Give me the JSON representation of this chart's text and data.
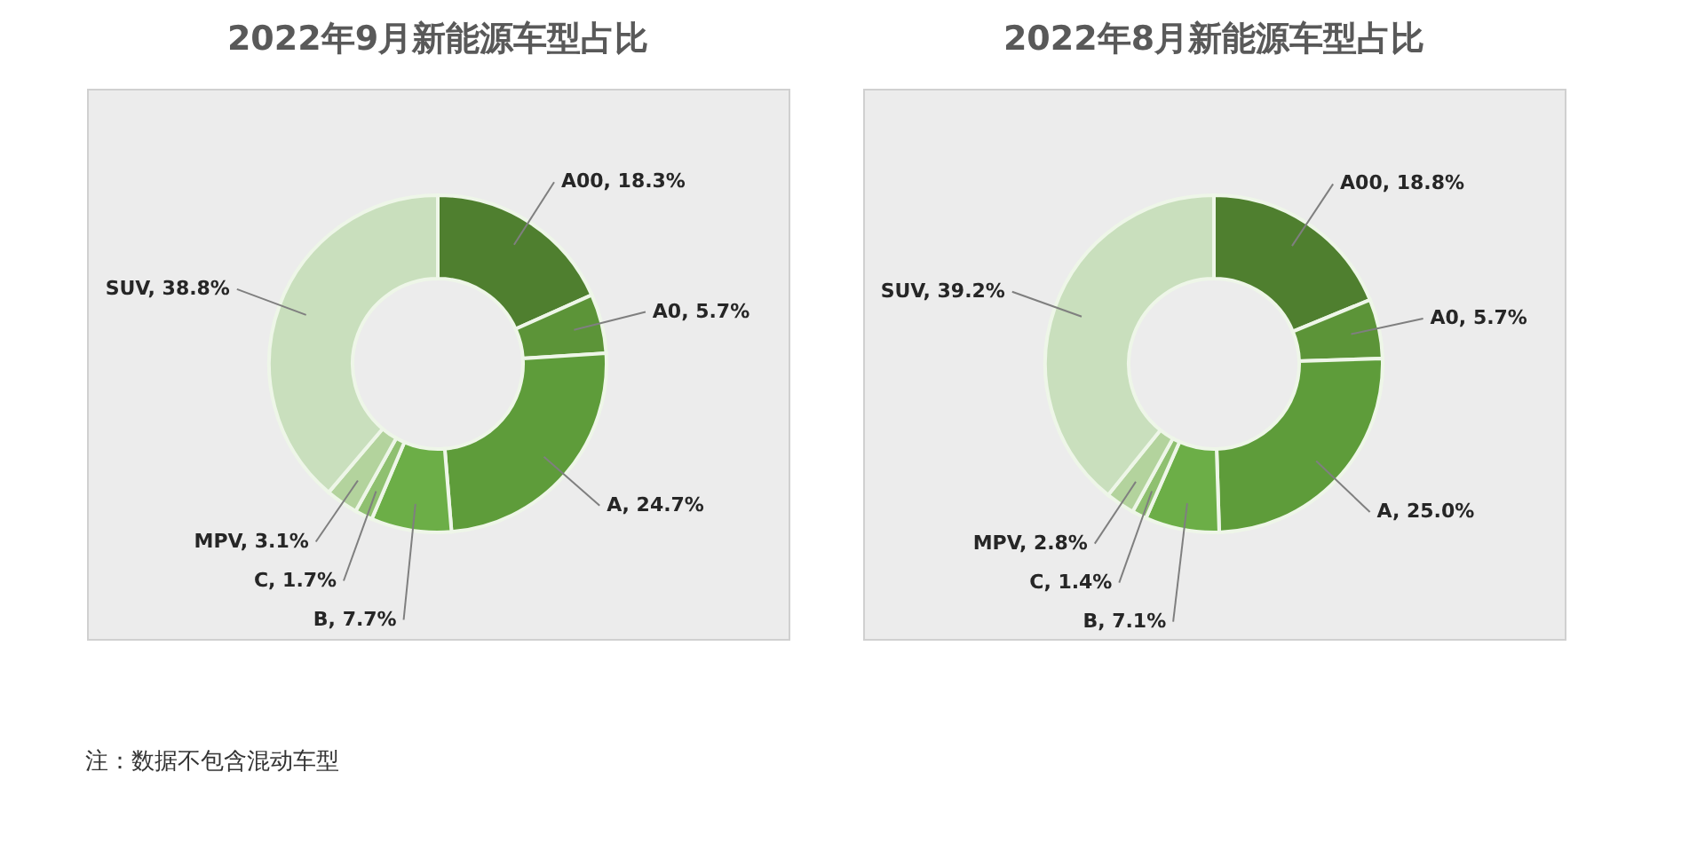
{
  "chart_data": [
    {
      "type": "donut",
      "title": "2022年9月新能源车型占比",
      "categories": [
        "A00",
        "A0",
        "A",
        "B",
        "C",
        "MPV",
        "SUV"
      ],
      "values": [
        18.3,
        5.7,
        24.7,
        7.7,
        1.7,
        3.1,
        38.8
      ],
      "colors": [
        "#4f7f2f",
        "#5c9438",
        "#5e9c3a",
        "#6cae47",
        "#8fc070",
        "#b3d39d",
        "#c9dfbd"
      ],
      "value_labels": [
        "18.3%",
        "5.7%",
        "24.7%",
        "7.7%",
        "1.7%",
        "3.1%",
        "38.8%"
      ],
      "annotations": [
        "注：数据不包含混动车型"
      ]
    },
    {
      "type": "donut",
      "title": "2022年8月新能源车型占比",
      "categories": [
        "A00",
        "A0",
        "A",
        "B",
        "C",
        "MPV",
        "SUV"
      ],
      "values": [
        18.8,
        5.7,
        25.0,
        7.1,
        1.4,
        2.8,
        39.2
      ],
      "colors": [
        "#4f7f2f",
        "#5c9438",
        "#5e9c3a",
        "#6cae47",
        "#8fc070",
        "#b3d39d",
        "#c9dfbd"
      ],
      "value_labels": [
        "18.8%",
        "5.7%",
        "25.0%",
        "7.1%",
        "1.4%",
        "2.8%",
        "39.2%"
      ]
    }
  ]
}
